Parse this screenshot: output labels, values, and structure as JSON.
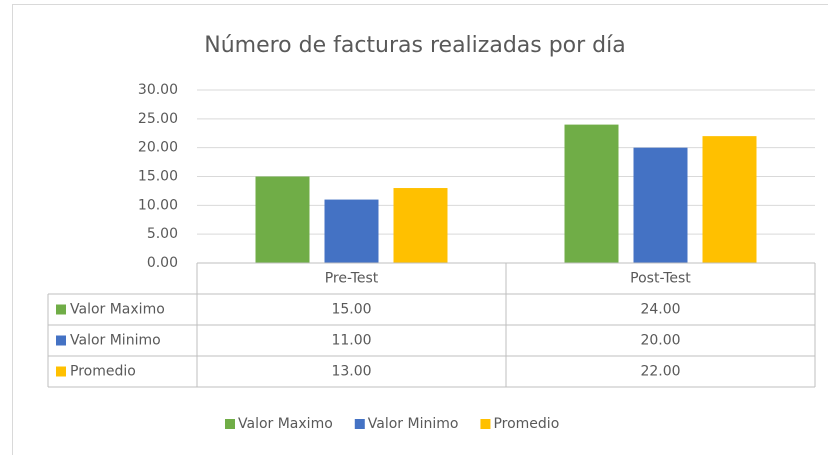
{
  "chart_data": {
    "type": "bar",
    "title": "Número de facturas realizadas por día",
    "categories": [
      "Pre-Test",
      "Post-Test"
    ],
    "series": [
      {
        "name": "Valor Maximo",
        "color": "#70ad47",
        "values": [
          15,
          24
        ],
        "value_labels": [
          "15.00",
          "24.00"
        ]
      },
      {
        "name": "Valor Minimo",
        "color": "#4472c4",
        "values": [
          11,
          20
        ],
        "value_labels": [
          "11.00",
          "20.00"
        ]
      },
      {
        "name": "Promedio",
        "color": "#ffc000",
        "values": [
          13,
          22
        ],
        "value_labels": [
          "13.00",
          "22.00"
        ]
      }
    ],
    "ylim": [
      0,
      30
    ],
    "yticks": [
      {
        "value": 0,
        "label": "0.00"
      },
      {
        "value": 5,
        "label": "5.00"
      },
      {
        "value": 10,
        "label": "10.00"
      },
      {
        "value": 15,
        "label": "15.00"
      },
      {
        "value": 20,
        "label": "20.00"
      },
      {
        "value": 25,
        "label": "25.00"
      },
      {
        "value": 30,
        "label": "30.00"
      }
    ],
    "grid": true,
    "legend": "bottom",
    "data_table": true
  }
}
